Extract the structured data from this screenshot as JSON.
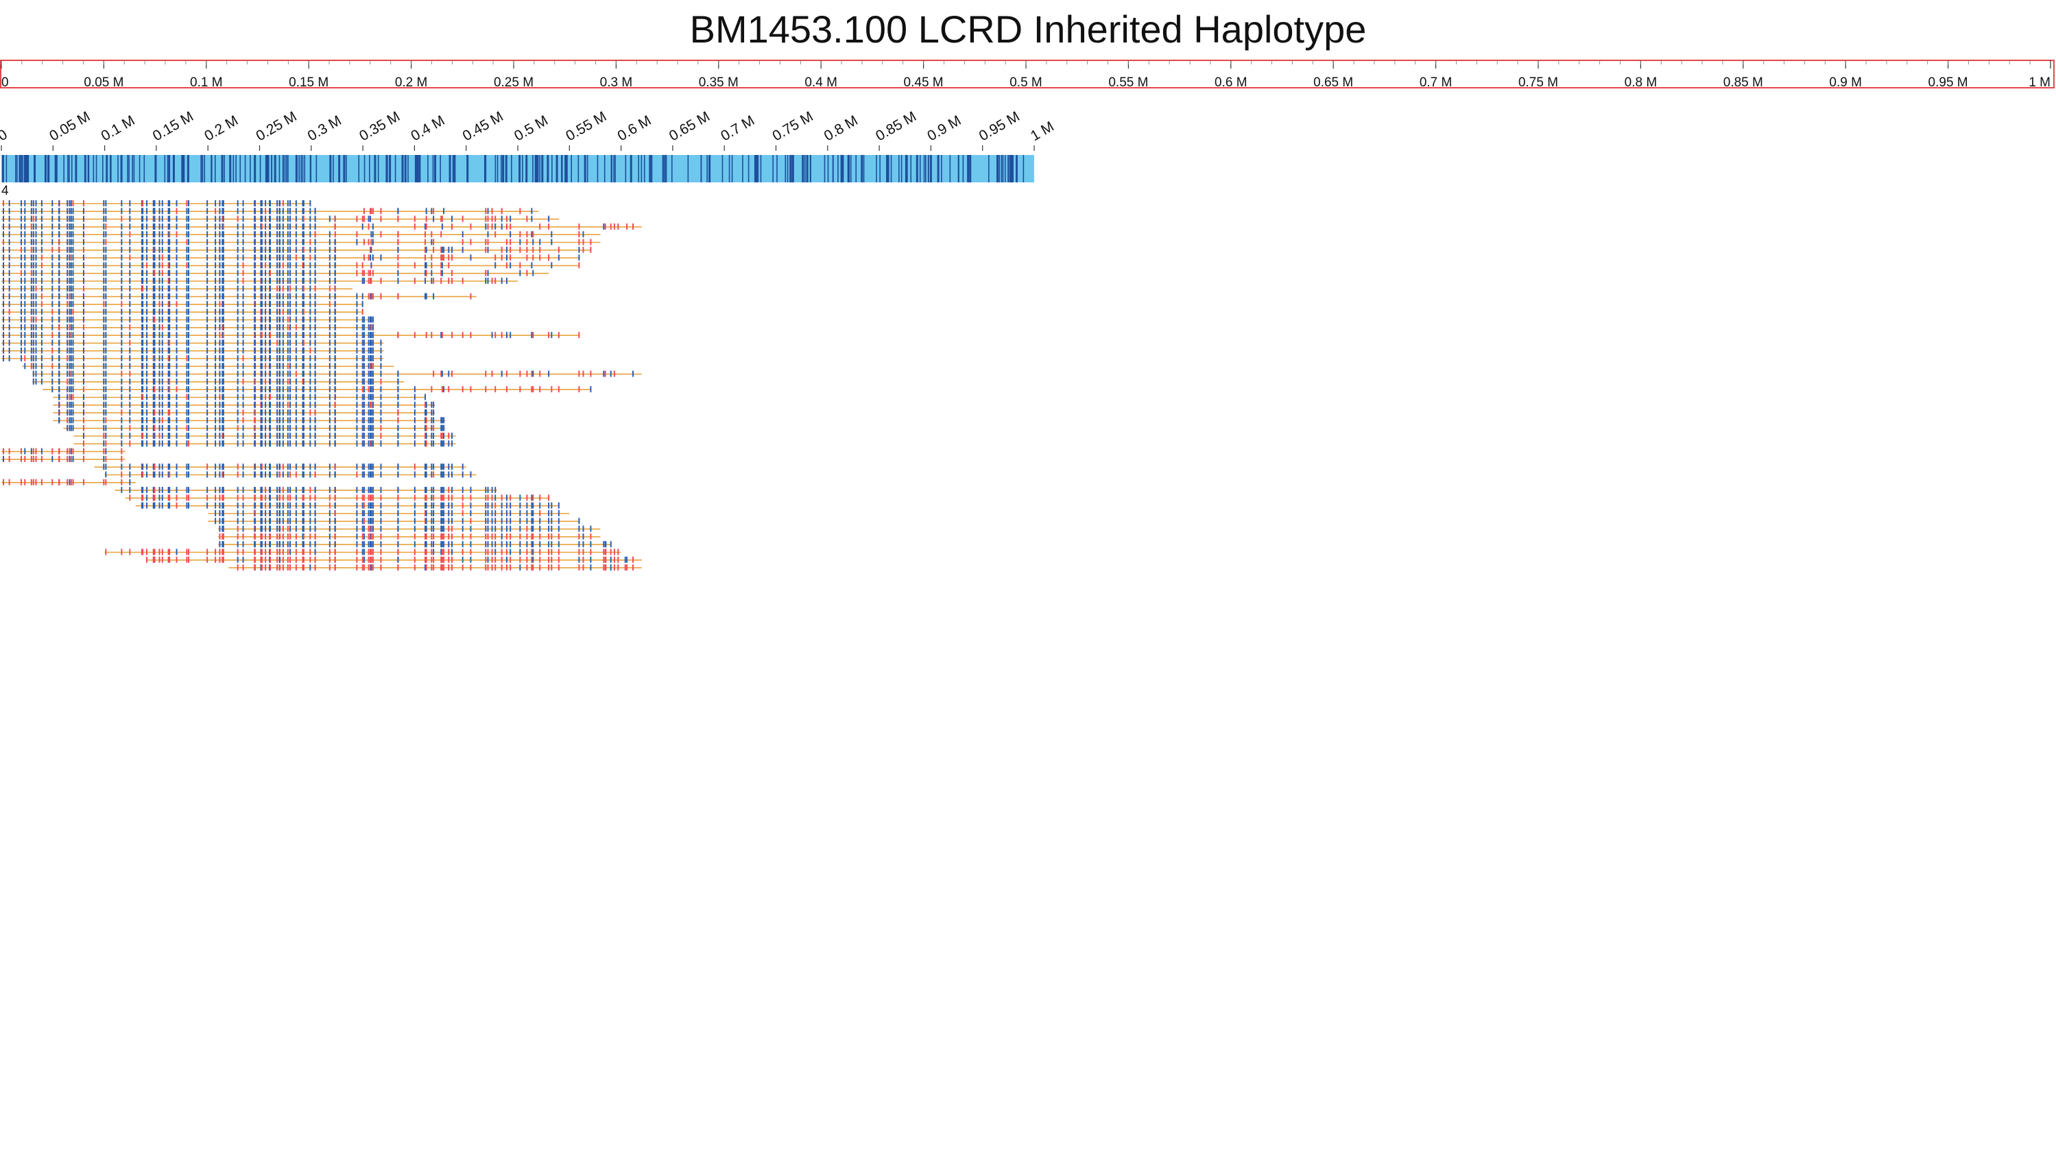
{
  "title": "BM1453.100 LCRD Inherited Haplotype",
  "track_label": "4",
  "colors": {
    "ruler_border": "#e4474b",
    "contig_bar": "#6ec8ee",
    "contig_mark": "#1e4f9c",
    "read_line": "#e8a23c",
    "match_mark": "#2b5fb3",
    "mismatch_mark": "#ef4d55"
  },
  "chart_data": {
    "type": "other",
    "top_ruler": {
      "range_m": [
        0,
        1
      ],
      "ticks": [
        "0",
        "0.05 M",
        "0.1 M",
        "0.15 M",
        "0.2 M",
        "0.25 M",
        "0.3 M",
        "0.35 M",
        "0.4 M",
        "0.45 M",
        "0.5 M",
        "0.55 M",
        "0.6 M",
        "0.65 M",
        "0.7 M",
        "0.75 M",
        "0.8 M",
        "0.85 M",
        "0.9 M",
        "0.95 M",
        "1 M"
      ]
    },
    "contig_ruler": {
      "range_m": [
        0,
        1
      ],
      "ticks": [
        "0",
        "0.05 M",
        "0.1 M",
        "0.15 M",
        "0.2 M",
        "0.25 M",
        "0.3 M",
        "0.35 M",
        "0.4 M",
        "0.45 M",
        "0.5 M",
        "0.55 M",
        "0.6 M",
        "0.65 M",
        "0.7 M",
        "0.75 M",
        "0.8 M",
        "0.85 M",
        "0.9 M",
        "0.95 M",
        "1 M"
      ]
    },
    "reads": [
      {
        "start": 0.0,
        "end": 0.3,
        "mode": "blue"
      },
      {
        "start": 0.0,
        "end": 0.31,
        "mode": "blue"
      },
      {
        "start": 0.0,
        "end": 0.31,
        "mode": "blue"
      },
      {
        "start": 0.0,
        "end": 0.31,
        "mode": "blue"
      },
      {
        "start": 0.0,
        "end": 0.32,
        "mode": "blue"
      },
      {
        "start": 0.0,
        "end": 0.33,
        "mode": "blue"
      },
      {
        "start": 0.0,
        "end": 0.33,
        "mode": "blue"
      },
      {
        "start": 0.0,
        "end": 0.33,
        "mode": "blue"
      },
      {
        "start": 0.0,
        "end": 0.33,
        "mode": "blue"
      },
      {
        "start": 0.0,
        "end": 0.33,
        "mode": "blue"
      },
      {
        "start": 0.0,
        "end": 0.34,
        "mode": "blue"
      },
      {
        "start": 0.0,
        "end": 0.34,
        "mode": "blue"
      },
      {
        "start": 0.0,
        "end": 0.35,
        "mode": "blue"
      },
      {
        "start": 0.0,
        "end": 0.35,
        "mode": "blue"
      },
      {
        "start": 0.0,
        "end": 0.35,
        "mode": "blue"
      },
      {
        "start": 0.0,
        "end": 0.36,
        "mode": "blue"
      },
      {
        "start": 0.0,
        "end": 0.36,
        "mode": "blue"
      },
      {
        "start": 0.0,
        "end": 0.36,
        "mode": "blue"
      },
      {
        "start": 0.0,
        "end": 0.37,
        "mode": "blue"
      },
      {
        "start": 0.0,
        "end": 0.37,
        "mode": "blue"
      },
      {
        "start": 0.0,
        "end": 0.37,
        "mode": "blue"
      },
      {
        "start": 0.02,
        "end": 0.38,
        "mode": "blue"
      },
      {
        "start": 0.03,
        "end": 0.39,
        "mode": "blue"
      },
      {
        "start": 0.03,
        "end": 0.39,
        "mode": "blue"
      },
      {
        "start": 0.04,
        "end": 0.4,
        "mode": "blue"
      },
      {
        "start": 0.05,
        "end": 0.41,
        "mode": "blue"
      },
      {
        "start": 0.05,
        "end": 0.42,
        "mode": "blue"
      },
      {
        "start": 0.05,
        "end": 0.42,
        "mode": "blue"
      },
      {
        "start": 0.05,
        "end": 0.43,
        "mode": "blue"
      },
      {
        "start": 0.06,
        "end": 0.43,
        "mode": "blue"
      },
      {
        "start": 0.07,
        "end": 0.44,
        "mode": "blue"
      },
      {
        "start": 0.07,
        "end": 0.44,
        "mode": "blue"
      },
      {
        "start": 0.0,
        "end": 0.12,
        "mode": "red"
      },
      {
        "start": 0.0,
        "end": 0.12,
        "mode": "red"
      },
      {
        "start": 0.09,
        "end": 0.45,
        "mode": "blue"
      },
      {
        "start": 0.1,
        "end": 0.46,
        "mode": "blue"
      },
      {
        "start": 0.0,
        "end": 0.13,
        "mode": "red"
      },
      {
        "start": 0.11,
        "end": 0.48,
        "mode": "blue"
      },
      {
        "start": 0.12,
        "end": 0.53,
        "mode": "red"
      },
      {
        "start": 0.13,
        "end": 0.54,
        "mode": "blue"
      },
      {
        "start": 0.2,
        "end": 0.55,
        "mode": "blue"
      },
      {
        "start": 0.2,
        "end": 0.56,
        "mode": "blue"
      },
      {
        "start": 0.21,
        "end": 0.58,
        "mode": "blue"
      },
      {
        "start": 0.21,
        "end": 0.58,
        "mode": "red"
      },
      {
        "start": 0.21,
        "end": 0.59,
        "mode": "blue"
      },
      {
        "start": 0.1,
        "end": 0.6,
        "mode": "red"
      },
      {
        "start": 0.14,
        "end": 0.62,
        "mode": "red"
      },
      {
        "start": 0.22,
        "end": 0.62,
        "mode": "red"
      }
    ],
    "reads_extended": [
      {
        "row": 1,
        "end": 0.52
      },
      {
        "row": 2,
        "end": 0.54
      },
      {
        "row": 3,
        "end": 0.62
      },
      {
        "row": 4,
        "end": 0.58
      },
      {
        "row": 5,
        "end": 0.58
      },
      {
        "row": 6,
        "end": 0.57
      },
      {
        "row": 7,
        "end": 0.56
      },
      {
        "row": 8,
        "end": 0.56
      },
      {
        "row": 9,
        "end": 0.53
      },
      {
        "row": 10,
        "end": 0.5
      },
      {
        "row": 12,
        "end": 0.46
      },
      {
        "row": 17,
        "end": 0.56
      },
      {
        "row": 22,
        "end": 0.62
      },
      {
        "row": 24,
        "end": 0.57
      }
    ]
  }
}
